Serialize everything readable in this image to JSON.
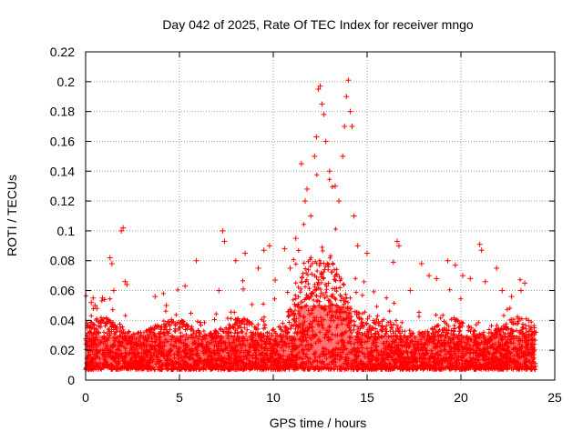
{
  "chart_data": {
    "type": "scatter",
    "title": "Day 042 of 2025, Rate Of TEC Index for receiver mngo",
    "xlabel": "GPS time / hours",
    "ylabel": "ROTI / TECUs",
    "xlim": [
      0,
      25
    ],
    "ylim": [
      0,
      0.22
    ],
    "x_ticks": [
      0,
      5,
      10,
      15,
      20,
      25
    ],
    "x_tick_labels": [
      "0",
      "5",
      "10",
      "15",
      "20",
      "25"
    ],
    "y_ticks": [
      0,
      0.02,
      0.04,
      0.06,
      0.08,
      0.1,
      0.12,
      0.14,
      0.16,
      0.18,
      0.2,
      0.22
    ],
    "y_tick_labels": [
      "0",
      "0.02",
      "0.04",
      "0.06",
      "0.08",
      "0.1",
      "0.12",
      "0.14",
      "0.16",
      "0.18",
      "0.2",
      "0.22"
    ],
    "grid": true,
    "marker": "+",
    "marker_color": "#ff0000",
    "series": [
      {
        "name": "ROTI",
        "x": [
          0.1,
          0.3,
          0.4,
          0.5,
          0.6,
          0.9,
          1.3,
          1.4,
          1.5,
          1.9,
          2.0,
          2.1,
          2.2,
          3.7,
          4.3,
          5.3,
          5.9,
          7.1,
          7.3,
          7.4,
          8.0,
          8.4,
          8.5,
          9.2,
          9.5,
          9.8,
          10.1,
          10.6,
          10.9,
          11.2,
          11.5,
          11.7,
          11.8,
          12.0,
          12.2,
          12.3,
          12.4,
          12.5,
          12.6,
          12.7,
          12.8,
          13.0,
          13.3,
          13.5,
          13.7,
          13.8,
          13.9,
          14.0,
          14.1,
          14.2,
          14.3,
          14.5,
          15.0,
          16.4,
          16.6,
          16.7,
          17.3,
          17.9,
          18.3,
          18.7,
          19.3,
          19.7,
          20.1,
          20.5,
          21.0,
          21.1,
          21.3,
          21.9,
          22.2,
          22.7,
          23.2,
          23.4,
          23.6,
          23.9
        ],
        "y": [
          0.035,
          0.052,
          0.055,
          0.05,
          0.048,
          0.055,
          0.082,
          0.078,
          0.06,
          0.1,
          0.102,
          0.066,
          0.064,
          0.056,
          0.05,
          0.063,
          0.08,
          0.06,
          0.1,
          0.093,
          0.08,
          0.061,
          0.085,
          0.075,
          0.087,
          0.09,
          0.067,
          0.088,
          0.075,
          0.095,
          0.145,
          0.12,
          0.128,
          0.11,
          0.15,
          0.163,
          0.195,
          0.197,
          0.185,
          0.178,
          0.16,
          0.14,
          0.13,
          0.12,
          0.15,
          0.17,
          0.19,
          0.201,
          0.18,
          0.17,
          0.11,
          0.09,
          0.085,
          0.079,
          0.093,
          0.09,
          0.06,
          0.078,
          0.07,
          0.068,
          0.08,
          0.077,
          0.07,
          0.068,
          0.091,
          0.087,
          0.066,
          0.075,
          0.06,
          0.056,
          0.06,
          0.065,
          0.04,
          0.035
        ]
      }
    ]
  }
}
